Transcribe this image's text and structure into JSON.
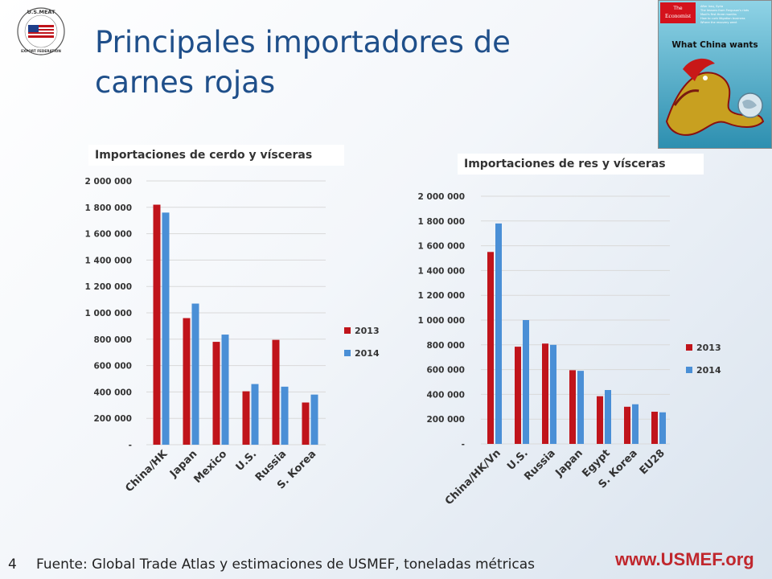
{
  "title": "Principales importadores de carnes rojas",
  "logo": {
    "top_text": "U.S.MEAT",
    "bottom_text": "EXPORT FEDERATION"
  },
  "cover": {
    "brand_line1": "The",
    "brand_line2": "Economist",
    "headline": "What China wants",
    "headlines_list": [
      "After Iraq, Syria",
      "The lessons from Ferguson's riots",
      "Modi's first three months",
      "How to curb litigation business",
      "Where the recovery went"
    ]
  },
  "colors": {
    "series_2013": "#c0141b",
    "series_2014": "#4a8fd6",
    "title": "#1f4f8a",
    "url": "#c0272d"
  },
  "footer": {
    "slide_number": "4",
    "source": "Fuente: Global Trade Atlas y estimaciones de USMEF, toneladas métricas",
    "url": "www.USMEF.org"
  },
  "chart_data": [
    {
      "type": "bar",
      "title": "Importaciones de cerdo y vísceras",
      "categories": [
        "China/HK",
        "Japan",
        "Mexico",
        "U.S.",
        "Russia",
        "S. Korea"
      ],
      "series": [
        {
          "name": "2013",
          "values": [
            1820000,
            960000,
            780000,
            405000,
            795000,
            320000
          ]
        },
        {
          "name": "2014",
          "values": [
            1760000,
            1070000,
            835000,
            460000,
            440000,
            380000
          ]
        }
      ],
      "ylim": [
        0,
        2000000
      ],
      "yticks": [
        "-",
        "200 000",
        "400 000",
        "600 000",
        "800 000",
        "1 000 000",
        "1 200 000",
        "1 400 000",
        "1 600 000",
        "1 800 000",
        "2 000 000"
      ],
      "grid": true,
      "legend": "right"
    },
    {
      "type": "bar",
      "title": "Importaciones de res y vísceras",
      "categories": [
        "China/HK/Vn",
        "U.S.",
        "Russia",
        "Japan",
        "Egypt",
        "S. Korea",
        "EU28"
      ],
      "series": [
        {
          "name": "2013",
          "values": [
            1550000,
            785000,
            810000,
            595000,
            385000,
            300000,
            260000
          ]
        },
        {
          "name": "2014",
          "values": [
            1780000,
            1000000,
            800000,
            590000,
            435000,
            320000,
            255000
          ]
        }
      ],
      "ylim": [
        0,
        2000000
      ],
      "yticks": [
        "-",
        "200 000",
        "400 000",
        "600 000",
        "800 000",
        "1 000 000",
        "1 200 000",
        "1 400 000",
        "1 600 000",
        "1 800 000",
        "2 000 000"
      ],
      "grid": true,
      "legend": "right"
    }
  ]
}
